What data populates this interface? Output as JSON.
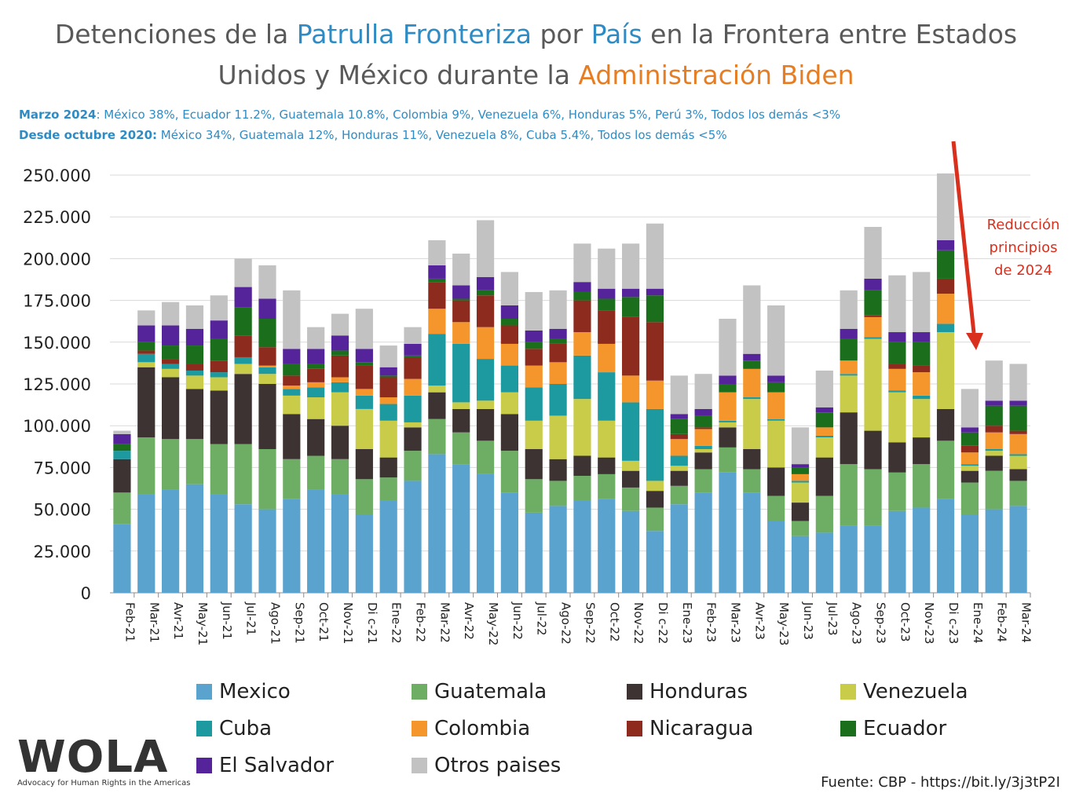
{
  "title": {
    "line1_part1": "Detenciones de la ",
    "line1_part2": "Patrulla Fronteriza",
    "line1_part3": " por ",
    "line1_part4": "País",
    "line1_part5": " en la Frontera entre Estados",
    "line2_part1": "Unidos y México durante la ",
    "line2_part2": "Administración Biden"
  },
  "notes": {
    "note1_label": "Marzo 2024",
    "note1_text": ": México 38%, Ecuador 11.2%, Guatemala 10.8%, Colombia 9%, Venezuela 6%, Honduras 5%, Perú 3%, Todos los demás <3%",
    "note2_label": "Desde octubre 2020:",
    "note2_text": " México 34%, Guatemala 12%, Honduras 11%, Venezuela 8%, Cuba 5.4%, Todos los demás <5%"
  },
  "annotation": {
    "line1": "Reducción",
    "line2": "principios",
    "line3": "de 2024"
  },
  "source": "Fuente: CBP - https://bit.ly/3j3tP2I",
  "logo": {
    "word": "WOLA",
    "tagline": "Advocacy for Human Rights in the Americas"
  },
  "colors": {
    "title_accent_blue": "#2e8bc4",
    "title_accent_orange": "#e77d22",
    "annotation_red": "#d9301e"
  },
  "chart_data": {
    "type": "bar",
    "stacked": true,
    "categories": [
      "Feb-21",
      "Mar-21",
      "Avr-21",
      "May-21",
      "Jun-21",
      "Jul-21",
      "Ago-21",
      "Sep-21",
      "Oct-21",
      "Nov-21",
      "Dic-21",
      "Ene-22",
      "Feb-22",
      "Mar-22",
      "Avr-22",
      "May-22",
      "Jun-22",
      "Jul-22",
      "Ago-22",
      "Sep-22",
      "Oct-22",
      "Nov-22",
      "Dic-22",
      "Ene-23",
      "Feb-23",
      "Mar-23",
      "Avr-23",
      "May-23",
      "Jun-23",
      "Jul-23",
      "Ago-23",
      "Sep-23",
      "Oct-23",
      "Nov-23",
      "Dic-23",
      "Ene-24",
      "Feb-24",
      "Mar-24"
    ],
    "category_labels": [
      "Feb-21",
      "Mar-21",
      "Avr-21",
      "May-21",
      "Jun-21",
      "Jul-21",
      "Ago-21",
      "Sep-21",
      "Oct-21",
      "Nov-21",
      "Di c-21",
      "Ene-22",
      "Feb-22",
      "Mar-22",
      "Avr-22",
      "May-22",
      "Jun-22",
      "Jul-22",
      "Ago-22",
      "Sep-22",
      "Oct-22",
      "Nov-22",
      "Di c-22",
      "Ene-23",
      "Feb-23",
      "Mar-23",
      "Avr-23",
      "May-23",
      "Jun-23",
      "Jul-23",
      "Ago-23",
      "Sep-23",
      "Oct-23",
      "Nov-23",
      "Di c-23",
      "Ene-24",
      "Feb-24",
      "Mar-24"
    ],
    "ylim": [
      0,
      250000
    ],
    "yticks": [
      0,
      25000,
      50000,
      75000,
      100000,
      125000,
      150000,
      175000,
      200000,
      225000,
      250000
    ],
    "ytick_labels": [
      "0",
      "25.000",
      "50.000",
      "75.000",
      "100.000",
      "125.000",
      "150.000",
      "175.000",
      "200.000",
      "225.000",
      "250.000"
    ],
    "grid": true,
    "legend_position": "bottom",
    "series": [
      {
        "name": "Mexico",
        "color": "#5ba3cf",
        "values": [
          41000,
          59000,
          62000,
          65000,
          59000,
          53000,
          50000,
          56000,
          62000,
          59000,
          47000,
          55000,
          67000,
          83000,
          77000,
          71000,
          60000,
          48000,
          52000,
          55000,
          56000,
          49000,
          37000,
          53000,
          60000,
          72000,
          60000,
          43000,
          34000,
          36000,
          40000,
          40000,
          49000,
          51000,
          56000,
          47000,
          50000,
          52000
        ]
      },
      {
        "name": "Guatemala",
        "color": "#6dad64",
        "values": [
          19000,
          34000,
          30000,
          27000,
          30000,
          36000,
          36000,
          24000,
          20000,
          21000,
          21000,
          14000,
          18000,
          21000,
          19000,
          20000,
          25000,
          20000,
          15000,
          15000,
          15000,
          14000,
          14000,
          11000,
          14000,
          15000,
          14000,
          15000,
          9000,
          22000,
          37000,
          34000,
          23000,
          26000,
          35000,
          19000,
          23000,
          15000
        ]
      },
      {
        "name": "Honduras",
        "color": "#3d3333",
        "values": [
          20000,
          42000,
          37000,
          30000,
          32000,
          42000,
          39000,
          27000,
          22000,
          20000,
          18000,
          12000,
          14000,
          16000,
          14000,
          19000,
          22000,
          18000,
          13000,
          12000,
          10000,
          10000,
          10000,
          9000,
          10000,
          12000,
          12000,
          17000,
          11000,
          23000,
          31000,
          23000,
          18000,
          16000,
          19000,
          7000,
          9000,
          7000
        ]
      },
      {
        "name": "Venezuela",
        "color": "#c8cc48",
        "values": [
          0,
          3000,
          5000,
          8000,
          8000,
          6000,
          6000,
          11000,
          13000,
          20000,
          24000,
          22000,
          3000,
          4000,
          4000,
          5000,
          13000,
          17000,
          26000,
          34000,
          22000,
          6000,
          6000,
          3000,
          2000,
          3000,
          30000,
          28000,
          12000,
          12000,
          22000,
          55000,
          30000,
          23000,
          46000,
          3000,
          3000,
          8000
        ]
      },
      {
        "name": "Cuba",
        "color": "#1d9aa0",
        "values": [
          5000,
          5000,
          3000,
          3000,
          3000,
          4000,
          4000,
          4000,
          6000,
          6000,
          8000,
          10000,
          16000,
          31000,
          35000,
          25000,
          16000,
          20000,
          19000,
          26000,
          29000,
          35000,
          43000,
          6000,
          2000,
          1000,
          1000,
          1000,
          1000,
          1000,
          1000,
          1000,
          1000,
          2000,
          5000,
          1000,
          1000,
          1000
        ]
      },
      {
        "name": "Colombia",
        "color": "#f4962b",
        "values": [
          0,
          0,
          0,
          0,
          0,
          0,
          1000,
          2000,
          3000,
          3000,
          4000,
          4000,
          10000,
          15000,
          13000,
          19000,
          13000,
          13000,
          13000,
          14000,
          17000,
          16000,
          17000,
          10000,
          10000,
          17000,
          17000,
          16000,
          4000,
          5000,
          8000,
          12000,
          13000,
          14000,
          18000,
          7000,
          10000,
          12000
        ]
      },
      {
        "name": "Nicaragua",
        "color": "#8c2b1e",
        "values": [
          0,
          2000,
          3000,
          4000,
          7000,
          13000,
          11000,
          6000,
          8000,
          13000,
          14000,
          12000,
          13000,
          16000,
          13000,
          19000,
          11000,
          10000,
          11000,
          19000,
          20000,
          35000,
          35000,
          3000,
          1000,
          0,
          0,
          0,
          0,
          0,
          0,
          1000,
          3000,
          4000,
          9000,
          4000,
          4000,
          2000
        ]
      },
      {
        "name": "Ecuador",
        "color": "#1b6e1b",
        "values": [
          4000,
          5000,
          8000,
          11000,
          13000,
          17000,
          17000,
          7000,
          3000,
          3000,
          2000,
          1000,
          1000,
          2000,
          1000,
          3000,
          4000,
          4000,
          3000,
          5000,
          7000,
          12000,
          16000,
          9000,
          7000,
          5000,
          5000,
          6000,
          4000,
          9000,
          13000,
          15000,
          13000,
          14000,
          17000,
          8000,
          12000,
          15000
        ]
      },
      {
        "name": "El Salvador",
        "color": "#55239a",
        "values": [
          6000,
          10000,
          12000,
          10000,
          11000,
          12000,
          12000,
          9000,
          9000,
          9000,
          8000,
          5000,
          7000,
          8000,
          8000,
          8000,
          8000,
          7000,
          6000,
          6000,
          6000,
          5000,
          4000,
          3000,
          4000,
          5000,
          4000,
          4000,
          2000,
          3000,
          6000,
          7000,
          6000,
          6000,
          6000,
          3000,
          3000,
          3000
        ]
      },
      {
        "name": "Otros paises",
        "color": "#c2c2c2",
        "values": [
          2000,
          9000,
          14000,
          14000,
          15000,
          17000,
          20000,
          35000,
          13000,
          13000,
          24000,
          13000,
          10000,
          15000,
          19000,
          34000,
          20000,
          23000,
          23000,
          23000,
          24000,
          27000,
          39000,
          23000,
          21000,
          34000,
          41000,
          42000,
          22000,
          22000,
          23000,
          31000,
          34000,
          36000,
          40000,
          23000,
          24000,
          22000
        ]
      }
    ]
  }
}
